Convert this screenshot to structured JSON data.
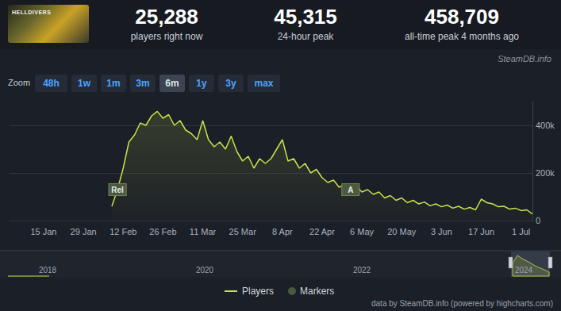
{
  "header": {
    "game_name": "HELLDIVERS",
    "stats": [
      {
        "value": "25,288",
        "label": "players right now"
      },
      {
        "value": "45,315",
        "label": "24-hour peak"
      },
      {
        "value": "458,709",
        "label": "all-time peak 4 months ago"
      }
    ]
  },
  "site_label": "SteamDB.info",
  "zoom": {
    "label": "Zoom",
    "buttons": [
      "48h",
      "1w",
      "1m",
      "3m",
      "6m",
      "1y",
      "3y",
      "max"
    ],
    "selected": "6m"
  },
  "navigator": {
    "labels": [
      "2018",
      "2020",
      "2022",
      "2024"
    ]
  },
  "credit": "data by SteamDB.info (powered by highcharts.com)",
  "chart_data": {
    "type": "line",
    "categories": [
      null,
      null,
      null,
      null,
      null,
      null,
      "15 Jan",
      null,
      null,
      null,
      null,
      null,
      null,
      "29 Jan",
      null,
      null,
      null,
      null,
      null,
      null,
      "12 Feb",
      null,
      null,
      null,
      null,
      null,
      null,
      "26 Feb",
      null,
      null,
      null,
      null,
      null,
      null,
      "11 Mar",
      null,
      null,
      null,
      null,
      null,
      null,
      "25 Mar",
      null,
      null,
      null,
      null,
      null,
      null,
      "8 Apr",
      null,
      null,
      null,
      null,
      null,
      null,
      "22 Apr",
      null,
      null,
      null,
      null,
      null,
      null,
      "6 May",
      null,
      null,
      null,
      null,
      null,
      null,
      "20 May",
      null,
      null,
      null,
      null,
      null,
      null,
      "3 Jun",
      null,
      null,
      null,
      null,
      null,
      null,
      "17 Jun",
      null,
      null,
      null,
      null,
      null,
      null,
      "1 Jul",
      null,
      null
    ],
    "series": [
      {
        "name": "Players",
        "color": "#c8e04a",
        "values": [
          null,
          null,
          null,
          null,
          null,
          null,
          null,
          null,
          null,
          null,
          null,
          null,
          null,
          null,
          null,
          null,
          null,
          null,
          60000,
          130000,
          220000,
          330000,
          360000,
          410000,
          400000,
          440000,
          458709,
          430000,
          445000,
          400000,
          420000,
          380000,
          365000,
          340000,
          420000,
          340000,
          310000,
          330000,
          300000,
          355000,
          290000,
          250000,
          270000,
          220000,
          260000,
          240000,
          260000,
          300000,
          340000,
          250000,
          260000,
          220000,
          240000,
          200000,
          215000,
          180000,
          160000,
          170000,
          140000,
          150000,
          130000,
          145000,
          120000,
          130000,
          110000,
          120000,
          95000,
          105000,
          85000,
          95000,
          75000,
          85000,
          70000,
          78000,
          62000,
          70000,
          58000,
          65000,
          52000,
          60000,
          48000,
          55000,
          45000,
          90000,
          75000,
          70000,
          58000,
          60000,
          48000,
          52000,
          42000,
          45000,
          28000
        ]
      }
    ],
    "markers": {
      "name": "Markers",
      "items": [
        {
          "label": "Rel",
          "index": 19
        },
        {
          "label": "A",
          "index": 60
        }
      ]
    },
    "ylim": [
      0,
      500000
    ],
    "yticks": [
      0,
      {
        "value": 200000,
        "label": "200k"
      },
      {
        "value": 400000,
        "label": "400k"
      }
    ],
    "grid": true,
    "legend": "bottom"
  }
}
